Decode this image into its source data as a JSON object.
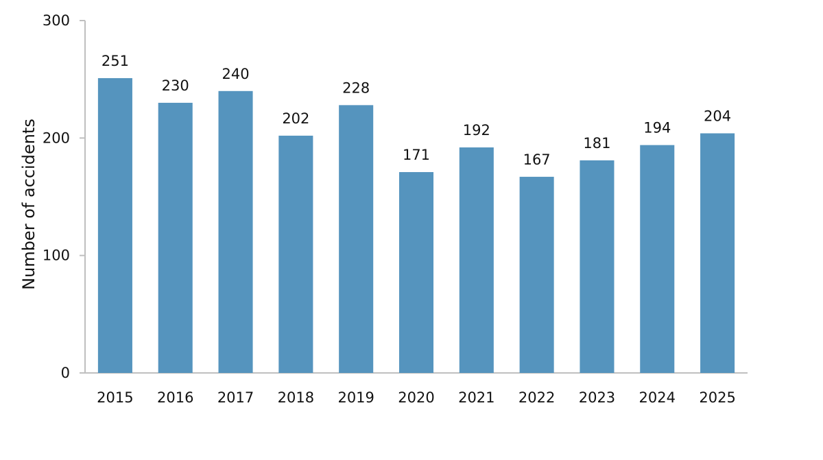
{
  "chart_data": {
    "type": "bar",
    "title": "",
    "xlabel": "",
    "ylabel": "Number of accidents",
    "categories": [
      "2015",
      "2016",
      "2017",
      "2018",
      "2019",
      "2020",
      "2021",
      "2022",
      "2023",
      "2024",
      "2025"
    ],
    "series": [
      {
        "values": [
          251,
          230,
          240,
          202,
          228,
          171,
          192,
          167,
          181,
          194,
          204
        ],
        "color": "#5594BE"
      }
    ],
    "ylim": [
      0,
      300
    ],
    "yticks": [
      0,
      100,
      200,
      300
    ],
    "grid": false,
    "legend": "none",
    "data_labels": true,
    "axis_color": "#BFBFBF"
  }
}
